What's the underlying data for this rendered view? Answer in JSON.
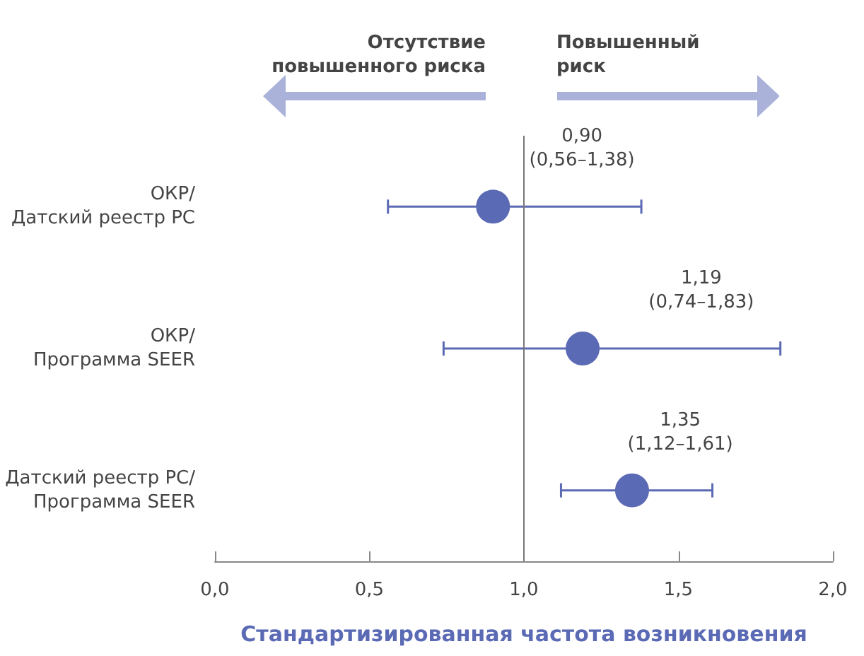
{
  "chart_data": {
    "type": "scatter",
    "orientation": "horizontal",
    "xlabel": "Стандартизированная частота возникновения",
    "categories": [
      "ОКР/\nДатский реестр РС",
      "ОКР/\nПрограмма SEER",
      "Датский реестр РС/\nПрограмма SEER"
    ],
    "series": [
      {
        "color": "#5b6ab4",
        "values": [
          0.9,
          1.19,
          1.35
        ],
        "errors": [
          [
            0.56,
            1.38
          ],
          [
            0.74,
            1.83
          ],
          [
            1.12,
            1.61
          ]
        ],
        "value_labels": [
          "0,90\n(0,56–1,38)",
          "1,19\n(0,74–1,83)",
          "1,35\n(1,12–1,61)"
        ]
      }
    ],
    "xlim": [
      0,
      2.0
    ],
    "xticks": [
      {
        "value": 0,
        "label": "0,0"
      },
      {
        "value": 0.5,
        "label": "0,5"
      },
      {
        "value": 1.0,
        "label": "1,0"
      },
      {
        "value": 1.5,
        "label": "1,5"
      },
      {
        "value": 2.0,
        "label": "2,0"
      }
    ],
    "ref_lines": [
      {
        "axis": "x",
        "value": 1.0,
        "color": "#777777"
      }
    ],
    "annotations": [
      "Отсутствие\nповышенного риска",
      "Повышенный\nриск"
    ],
    "grid": false,
    "marker": "circle"
  }
}
